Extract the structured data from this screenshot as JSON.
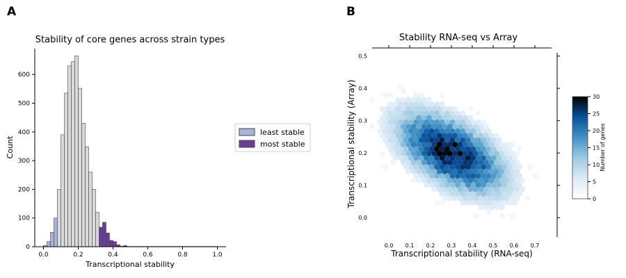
{
  "panels": {
    "a_label": "A",
    "b_label": "B"
  },
  "chart_data": [
    {
      "type": "bar",
      "subtype": "histogram",
      "title": "Stability of core genes across strain types",
      "xlabel": "Transcriptional stability",
      "ylabel": "Count",
      "xlim": [
        -0.05,
        1.05
      ],
      "ylim": [
        0,
        690
      ],
      "xticks": [
        "0.0",
        "0.2",
        "0.4",
        "0.6",
        "0.8",
        "1.0"
      ],
      "yticks": [
        "0",
        "100",
        "200",
        "300",
        "400",
        "500",
        "600"
      ],
      "bin_width": 0.02,
      "bin_start": 0.0,
      "colors": {
        "default": "#d9d9d9",
        "least stable": "#aab4d8",
        "most stable": "#6a3d9a",
        "edge": "#444444"
      },
      "legend": {
        "placement": "right-outside",
        "entries": [
          {
            "label": "least stable",
            "color": "#aab4d8"
          },
          {
            "label": "most stable",
            "color": "#6a3d9a"
          }
        ]
      },
      "bins": [
        {
          "x0": 0.0,
          "count": 4,
          "group": "least stable"
        },
        {
          "x0": 0.02,
          "count": 18,
          "group": "least stable"
        },
        {
          "x0": 0.04,
          "count": 50,
          "group": "least stable"
        },
        {
          "x0": 0.06,
          "count": 100,
          "group": "least stable"
        },
        {
          "x0": 0.08,
          "count": 200,
          "group": "default"
        },
        {
          "x0": 0.1,
          "count": 390,
          "group": "default"
        },
        {
          "x0": 0.12,
          "count": 535,
          "group": "default"
        },
        {
          "x0": 0.14,
          "count": 630,
          "group": "default"
        },
        {
          "x0": 0.16,
          "count": 645,
          "group": "default"
        },
        {
          "x0": 0.18,
          "count": 665,
          "group": "default"
        },
        {
          "x0": 0.2,
          "count": 552,
          "group": "default"
        },
        {
          "x0": 0.22,
          "count": 430,
          "group": "default"
        },
        {
          "x0": 0.24,
          "count": 348,
          "group": "default"
        },
        {
          "x0": 0.26,
          "count": 260,
          "group": "default"
        },
        {
          "x0": 0.28,
          "count": 200,
          "group": "default"
        },
        {
          "x0": 0.3,
          "count": 120,
          "group": "default"
        },
        {
          "x0": 0.32,
          "count": 68,
          "group": "most stable"
        },
        {
          "x0": 0.34,
          "count": 85,
          "group": "most stable"
        },
        {
          "x0": 0.36,
          "count": 48,
          "group": "most stable"
        },
        {
          "x0": 0.38,
          "count": 22,
          "group": "most stable"
        },
        {
          "x0": 0.4,
          "count": 18,
          "group": "most stable"
        },
        {
          "x0": 0.42,
          "count": 7,
          "group": "most stable"
        },
        {
          "x0": 0.44,
          "count": 2,
          "group": "most stable"
        },
        {
          "x0": 0.46,
          "count": 4,
          "group": "most stable"
        },
        {
          "x0": 0.48,
          "count": 1,
          "group": "most stable"
        },
        {
          "x0": 0.5,
          "count": 1,
          "group": "most stable"
        },
        {
          "x0": 0.52,
          "count": 1,
          "group": "most stable"
        },
        {
          "x0": 0.54,
          "count": 1,
          "group": "most stable"
        },
        {
          "x0": 0.56,
          "count": 1,
          "group": "most stable"
        },
        {
          "x0": 0.58,
          "count": 1,
          "group": "most stable"
        },
        {
          "x0": 0.6,
          "count": 1,
          "group": "most stable"
        },
        {
          "x0": 0.62,
          "count": 1,
          "group": "most stable"
        },
        {
          "x0": 0.64,
          "count": 1,
          "group": "most stable"
        },
        {
          "x0": 0.66,
          "count": 1,
          "group": "most stable"
        },
        {
          "x0": 0.68,
          "count": 1,
          "group": "most stable"
        },
        {
          "x0": 0.7,
          "count": 1,
          "group": "most stable"
        },
        {
          "x0": 0.72,
          "count": 1,
          "group": "most stable"
        },
        {
          "x0": 0.74,
          "count": 1,
          "group": "most stable"
        },
        {
          "x0": 0.76,
          "count": 1,
          "group": "most stable"
        },
        {
          "x0": 0.78,
          "count": 1,
          "group": "most stable"
        },
        {
          "x0": 0.8,
          "count": 1,
          "group": "most stable"
        },
        {
          "x0": 0.82,
          "count": 1,
          "group": "most stable"
        },
        {
          "x0": 0.84,
          "count": 1,
          "group": "most stable"
        },
        {
          "x0": 0.86,
          "count": 1,
          "group": "most stable"
        },
        {
          "x0": 0.88,
          "count": 1,
          "group": "most stable"
        },
        {
          "x0": 0.9,
          "count": 1,
          "group": "most stable"
        },
        {
          "x0": 0.92,
          "count": 1,
          "group": "most stable"
        },
        {
          "x0": 0.94,
          "count": 1,
          "group": "most stable"
        },
        {
          "x0": 0.96,
          "count": 1,
          "group": "most stable"
        },
        {
          "x0": 0.98,
          "count": 1,
          "group": "most stable"
        }
      ]
    },
    {
      "type": "heatmap",
      "subtype": "hexbin",
      "title": "Stability RNA-seq vs Array",
      "xlabel": "Transcriptional stability (RNA-seq)",
      "ylabel": "Transcriptional stability (Array)",
      "xlim": [
        -0.08,
        0.78
      ],
      "ylim": [
        -0.06,
        0.51
      ],
      "xticks": [
        "0.0",
        "0.1",
        "0.2",
        "0.3",
        "0.4",
        "0.5",
        "0.6",
        "0.7"
      ],
      "yticks": [
        "0.0",
        "0.1",
        "0.2",
        "0.3",
        "0.4",
        "0.5"
      ],
      "density_center": {
        "x": 0.3,
        "y": 0.2
      },
      "peak_count": 30,
      "colormap": "Blues",
      "colorbar": {
        "label": "Number of genes",
        "min": 0,
        "max": 30,
        "ticks": [
          "0",
          "5",
          "10",
          "15",
          "20",
          "25",
          "30"
        ]
      }
    }
  ]
}
